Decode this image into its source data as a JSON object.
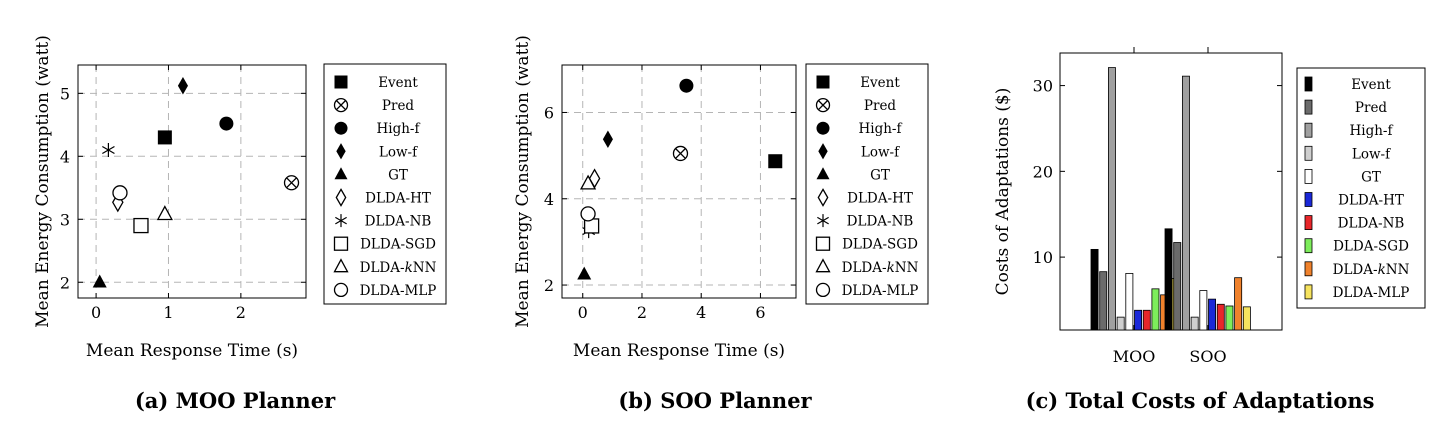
{
  "chart_data": [
    {
      "type": "scatter",
      "caption": "(a) MOO Planner",
      "xlabel": "Mean Response Time (s)",
      "ylabel": "Mean Energy Consumption (watt)",
      "xlim": [
        -0.25,
        2.9
      ],
      "ylim": [
        1.75,
        5.45
      ],
      "xticks": [
        0,
        1,
        2
      ],
      "yticks": [
        2,
        3,
        4,
        5
      ],
      "grid": true,
      "legend_position": "outside-right",
      "series": [
        {
          "name": "Event",
          "marker": "square-filled",
          "x": [
            0.95
          ],
          "y": [
            4.3
          ]
        },
        {
          "name": "Pred",
          "marker": "circle-cross",
          "x": [
            2.7
          ],
          "y": [
            3.58
          ]
        },
        {
          "name": "High-f",
          "marker": "circle-filled",
          "x": [
            1.8
          ],
          "y": [
            4.52
          ]
        },
        {
          "name": "Low-f",
          "marker": "diamond-filled",
          "x": [
            1.2
          ],
          "y": [
            5.12
          ]
        },
        {
          "name": "GT",
          "marker": "triangle-filled",
          "x": [
            0.05
          ],
          "y": [
            2.0
          ]
        },
        {
          "name": "DLDA-HT",
          "marker": "diamond-open",
          "x": [
            0.3
          ],
          "y": [
            3.27
          ]
        },
        {
          "name": "DLDA-NB",
          "marker": "star",
          "x": [
            0.17
          ],
          "y": [
            4.1
          ]
        },
        {
          "name": "DLDA-SGD",
          "marker": "square-open",
          "x": [
            0.62
          ],
          "y": [
            2.9
          ]
        },
        {
          "name": "DLDA-kNN",
          "marker": "triangle-open",
          "x": [
            0.95
          ],
          "y": [
            3.08
          ]
        },
        {
          "name": "DLDA-MLP",
          "marker": "circle-open",
          "x": [
            0.33
          ],
          "y": [
            3.42
          ]
        }
      ]
    },
    {
      "type": "scatter",
      "caption": "(b) SOO Planner",
      "xlabel": "Mean Response Time (s)",
      "ylabel": "Mean Energy Consumption (watt)",
      "xlim": [
        -0.7,
        7.2
      ],
      "ylim": [
        1.7,
        7.1
      ],
      "xticks": [
        0,
        2,
        4,
        6
      ],
      "yticks": [
        2,
        4,
        6
      ],
      "grid": true,
      "legend_position": "outside-right",
      "series": [
        {
          "name": "Event",
          "marker": "square-filled",
          "x": [
            6.5
          ],
          "y": [
            4.87
          ]
        },
        {
          "name": "Pred",
          "marker": "circle-cross",
          "x": [
            3.3
          ],
          "y": [
            5.05
          ]
        },
        {
          "name": "High-f",
          "marker": "circle-filled",
          "x": [
            3.5
          ],
          "y": [
            6.62
          ]
        },
        {
          "name": "Low-f",
          "marker": "diamond-filled",
          "x": [
            0.85
          ],
          "y": [
            5.38
          ]
        },
        {
          "name": "GT",
          "marker": "triangle-filled",
          "x": [
            0.05
          ],
          "y": [
            2.25
          ]
        },
        {
          "name": "DLDA-HT",
          "marker": "diamond-open",
          "x": [
            0.4
          ],
          "y": [
            4.47
          ]
        },
        {
          "name": "DLDA-NB",
          "marker": "star",
          "x": [
            0.2
          ],
          "y": [
            3.25
          ]
        },
        {
          "name": "DLDA-SGD",
          "marker": "square-open",
          "x": [
            0.3
          ],
          "y": [
            3.37
          ]
        },
        {
          "name": "DLDA-kNN",
          "marker": "triangle-open",
          "x": [
            0.18
          ],
          "y": [
            4.35
          ]
        },
        {
          "name": "DLDA-MLP",
          "marker": "circle-open",
          "x": [
            0.18
          ],
          "y": [
            3.65
          ]
        }
      ]
    },
    {
      "type": "bar",
      "caption": "(c) Total Costs of Adaptations",
      "xlabel": "",
      "ylabel": "Costs of Adaptations ($)",
      "ylim": [
        1.5,
        33.8
      ],
      "yticks": [
        10,
        20,
        30
      ],
      "categories": [
        "MOO",
        "SOO"
      ],
      "legend_position": "outside-right",
      "series": [
        {
          "name": "Event",
          "color": "#000000",
          "values": [
            10.9,
            13.3
          ]
        },
        {
          "name": "Pred",
          "color": "#6b6b6b",
          "values": [
            8.3,
            11.7
          ]
        },
        {
          "name": "High-f",
          "color": "#a0a0a0",
          "values": [
            32.1,
            31.1
          ]
        },
        {
          "name": "Low-f",
          "color": "#cfcfcf",
          "values": [
            3.0,
            3.0
          ]
        },
        {
          "name": "GT",
          "color": "#ffffff",
          "values": [
            8.1,
            6.1
          ]
        },
        {
          "name": "DLDA-HT",
          "color": "#1a28d8",
          "values": [
            3.8,
            5.1
          ]
        },
        {
          "name": "DLDA-NB",
          "color": "#e8262a",
          "values": [
            3.8,
            4.5
          ]
        },
        {
          "name": "DLDA-SGD",
          "color": "#7ded5b",
          "values": [
            6.3,
            4.3
          ]
        },
        {
          "name": "DLDA-kNN",
          "color": "#f0822c",
          "values": [
            5.6,
            7.6
          ]
        },
        {
          "name": "DLDA-MLP",
          "color": "#f6e35e",
          "values": [
            7.5,
            4.2
          ]
        }
      ]
    }
  ]
}
